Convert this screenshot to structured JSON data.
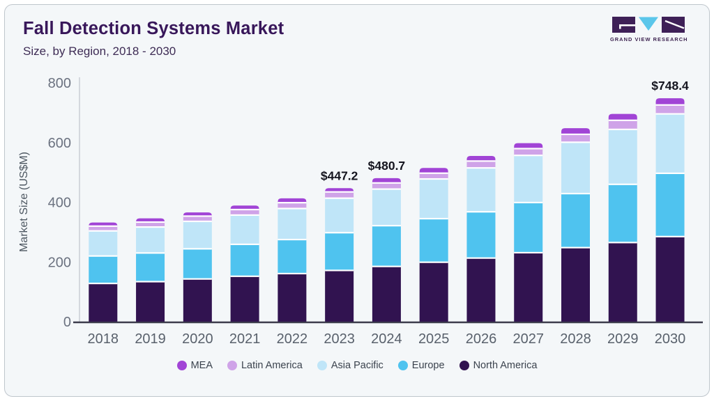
{
  "header": {
    "title": "Fall Detection Systems Market",
    "subtitle": "Size, by Region, 2018 - 2030"
  },
  "logo": {
    "text": "GRAND VIEW RESEARCH"
  },
  "chart_data": {
    "type": "bar",
    "stacked": true,
    "categories": [
      "2018",
      "2019",
      "2020",
      "2021",
      "2022",
      "2023",
      "2024",
      "2025",
      "2026",
      "2027",
      "2028",
      "2029",
      "2030"
    ],
    "series": [
      {
        "name": "North America",
        "color": "#311350",
        "values": [
          128,
          134,
          143,
          152,
          161,
          171.6,
          185,
          199,
          213,
          231,
          248,
          265,
          285
        ]
      },
      {
        "name": "Europe",
        "color": "#4fc3ef",
        "values": [
          92,
          96,
          101,
          107,
          114,
          126.4,
          136.5,
          146,
          155,
          168,
          181,
          195,
          212
        ]
      },
      {
        "name": "Asia Pacific",
        "color": "#bfe5f8",
        "values": [
          84,
          87,
          92,
          98,
          104,
          115.6,
          122.6,
          133,
          147,
          158,
          172,
          184,
          199
        ]
      },
      {
        "name": "Latin America",
        "color": "#cfa3e8",
        "values": [
          16,
          16.5,
          17.5,
          18.5,
          19.5,
          21,
          20.6,
          19.4,
          23,
          22.7,
          26.5,
          30.5,
          29.9
        ]
      },
      {
        "name": "MEA",
        "color": "#a144d6",
        "values": [
          12,
          12.5,
          12.5,
          13.5,
          14.5,
          12.6,
          16,
          17.5,
          17,
          18.3,
          20.5,
          21.5,
          22.5
        ]
      }
    ],
    "total_labels": {
      "2023": "$447.2",
      "2024": "$480.7",
      "2030": "$748.4"
    },
    "ylabel": "Market Size (US$M)",
    "ylim": [
      0,
      800
    ],
    "yticks": [
      0,
      200,
      400,
      600,
      800
    ],
    "legend_order": [
      "MEA",
      "Latin America",
      "Asia Pacific",
      "Europe",
      "North America"
    ],
    "legend_position": "bottom"
  }
}
